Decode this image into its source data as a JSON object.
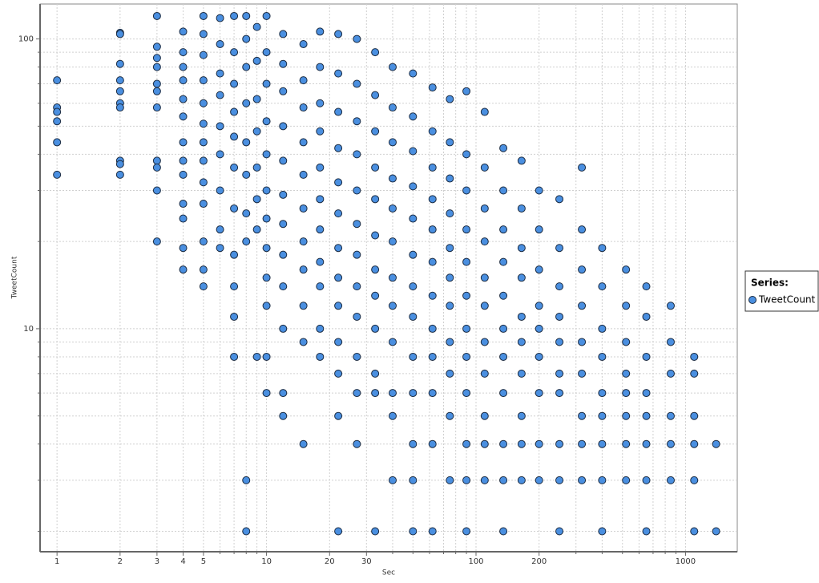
{
  "chart_data": {
    "type": "scatter",
    "x_label": "Sec",
    "y_label": "TweetCount",
    "log_x": true,
    "log_y": true,
    "grid": true,
    "legend_title": "Series:",
    "legend_position": "right",
    "xlim": [
      0.83,
      1766
    ],
    "ylim": [
      1.7,
      132
    ],
    "xticks": [
      1,
      2,
      3,
      4,
      5,
      10,
      20,
      30,
      100,
      200,
      1000
    ],
    "x_minor_ticks": [
      6,
      7,
      8,
      9,
      40,
      50,
      60,
      70,
      80,
      90,
      300,
      400,
      500,
      600,
      700,
      800,
      900
    ],
    "yticks": [
      10,
      100
    ],
    "y_minor_ticks": [
      2,
      3,
      4,
      5,
      6,
      7,
      8,
      9,
      20,
      30,
      40,
      50,
      60,
      70,
      80,
      90
    ],
    "series": [
      {
        "name": "TweetCount",
        "color": "#4a8fe0",
        "x": [
          1,
          1,
          1,
          1,
          1,
          1,
          2,
          2,
          2,
          2,
          2,
          2,
          2,
          2,
          2,
          2,
          3,
          3,
          3,
          3,
          3,
          3,
          3,
          3,
          3,
          3,
          3,
          4,
          4,
          4,
          4,
          4,
          4,
          4,
          4,
          4,
          4,
          4,
          4,
          4,
          5,
          5,
          5,
          5,
          5,
          5,
          5,
          5,
          5,
          5,
          5,
          5,
          5,
          6,
          6,
          6,
          6,
          6,
          6,
          6,
          6,
          6,
          7,
          7,
          7,
          7,
          7,
          7,
          7,
          7,
          7,
          7,
          7,
          8,
          8,
          8,
          8,
          8,
          8,
          8,
          8,
          8,
          8,
          9,
          9,
          9,
          9,
          9,
          9,
          9,
          9,
          10,
          10,
          10,
          10,
          10,
          10,
          10,
          10,
          10,
          10,
          10,
          10,
          12,
          12,
          12,
          12,
          12,
          12,
          12,
          12,
          12,
          12,
          12,
          12,
          15,
          15,
          15,
          15,
          15,
          15,
          15,
          15,
          15,
          15,
          15,
          18,
          18,
          18,
          18,
          18,
          18,
          18,
          18,
          18,
          18,
          18,
          22,
          22,
          22,
          22,
          22,
          22,
          22,
          22,
          22,
          22,
          22,
          22,
          22,
          27,
          27,
          27,
          27,
          27,
          27,
          27,
          27,
          27,
          27,
          27,
          27,
          33,
          33,
          33,
          33,
          33,
          33,
          33,
          33,
          33,
          33,
          33,
          33,
          40,
          40,
          40,
          40,
          40,
          40,
          40,
          40,
          40,
          40,
          40,
          40,
          50,
          50,
          50,
          50,
          50,
          50,
          50,
          50,
          50,
          50,
          50,
          50,
          50,
          62,
          62,
          62,
          62,
          62,
          62,
          62,
          62,
          62,
          62,
          62,
          62,
          75,
          75,
          75,
          75,
          75,
          75,
          75,
          75,
          75,
          75,
          75,
          90,
          90,
          90,
          90,
          90,
          90,
          90,
          90,
          90,
          90,
          90,
          90,
          110,
          110,
          110,
          110,
          110,
          110,
          110,
          110,
          110,
          110,
          110,
          135,
          135,
          135,
          135,
          135,
          135,
          135,
          135,
          135,
          135,
          135,
          165,
          165,
          165,
          165,
          165,
          165,
          165,
          165,
          165,
          165,
          200,
          200,
          200,
          200,
          200,
          200,
          200,
          200,
          200,
          250,
          250,
          250,
          250,
          250,
          250,
          250,
          250,
          250,
          250,
          320,
          320,
          320,
          320,
          320,
          320,
          320,
          320,
          320,
          400,
          400,
          400,
          400,
          400,
          400,
          400,
          400,
          400,
          520,
          520,
          520,
          520,
          520,
          520,
          520,
          520,
          650,
          650,
          650,
          650,
          650,
          650,
          650,
          650,
          850,
          850,
          850,
          850,
          850,
          850,
          1100,
          1100,
          1100,
          1100,
          1100,
          1100,
          1400,
          1400
        ],
        "values": [
          72,
          58,
          56,
          52,
          44,
          34,
          105,
          104,
          82,
          72,
          66,
          60,
          58,
          38,
          37,
          34,
          120,
          94,
          86,
          80,
          70,
          66,
          58,
          38,
          36,
          30,
          20,
          106,
          90,
          80,
          72,
          62,
          54,
          44,
          38,
          34,
          27,
          24,
          19,
          16,
          120,
          104,
          88,
          72,
          60,
          51,
          44,
          38,
          32,
          27,
          20,
          16,
          14,
          118,
          96,
          76,
          64,
          50,
          40,
          30,
          22,
          19,
          120,
          90,
          70,
          56,
          46,
          36,
          26,
          18,
          14,
          11,
          8,
          120,
          100,
          80,
          60,
          44,
          34,
          25,
          20,
          3,
          2,
          110,
          84,
          62,
          48,
          36,
          28,
          22,
          8,
          120,
          90,
          70,
          52,
          40,
          30,
          24,
          19,
          15,
          12,
          8,
          6,
          104,
          82,
          66,
          50,
          38,
          29,
          23,
          18,
          14,
          10,
          6,
          5,
          96,
          72,
          58,
          44,
          34,
          26,
          20,
          16,
          12,
          9,
          4,
          106,
          80,
          60,
          48,
          36,
          28,
          22,
          17,
          14,
          10,
          8,
          104,
          76,
          56,
          42,
          32,
          25,
          19,
          15,
          12,
          9,
          7,
          5,
          2,
          100,
          70,
          52,
          40,
          30,
          23,
          18,
          14,
          11,
          8,
          6,
          4,
          90,
          64,
          48,
          36,
          28,
          21,
          16,
          13,
          10,
          7,
          6,
          2,
          80,
          58,
          44,
          33,
          26,
          20,
          15,
          12,
          9,
          6,
          5,
          3,
          76,
          54,
          41,
          31,
          24,
          18,
          14,
          11,
          8,
          6,
          4,
          3,
          2,
          68,
          48,
          36,
          28,
          22,
          17,
          13,
          10,
          8,
          6,
          4,
          2,
          62,
          44,
          33,
          25,
          19,
          15,
          12,
          9,
          7,
          5,
          3,
          66,
          40,
          30,
          22,
          17,
          13,
          10,
          8,
          6,
          4,
          3,
          2,
          56,
          36,
          26,
          20,
          15,
          12,
          9,
          7,
          5,
          4,
          3,
          42,
          30,
          22,
          17,
          13,
          10,
          8,
          6,
          4,
          3,
          2,
          38,
          26,
          19,
          15,
          11,
          9,
          7,
          5,
          4,
          3,
          30,
          22,
          16,
          12,
          10,
          8,
          6,
          4,
          3,
          28,
          19,
          14,
          11,
          9,
          7,
          6,
          4,
          3,
          2,
          36,
          22,
          16,
          12,
          9,
          7,
          5,
          4,
          3,
          19,
          14,
          10,
          8,
          6,
          5,
          4,
          3,
          2,
          16,
          12,
          9,
          7,
          6,
          5,
          4,
          3,
          14,
          11,
          8,
          6,
          5,
          4,
          3,
          2,
          12,
          9,
          7,
          5,
          4,
          3,
          8,
          7,
          5,
          4,
          3,
          2,
          4,
          2
        ]
      }
    ]
  }
}
